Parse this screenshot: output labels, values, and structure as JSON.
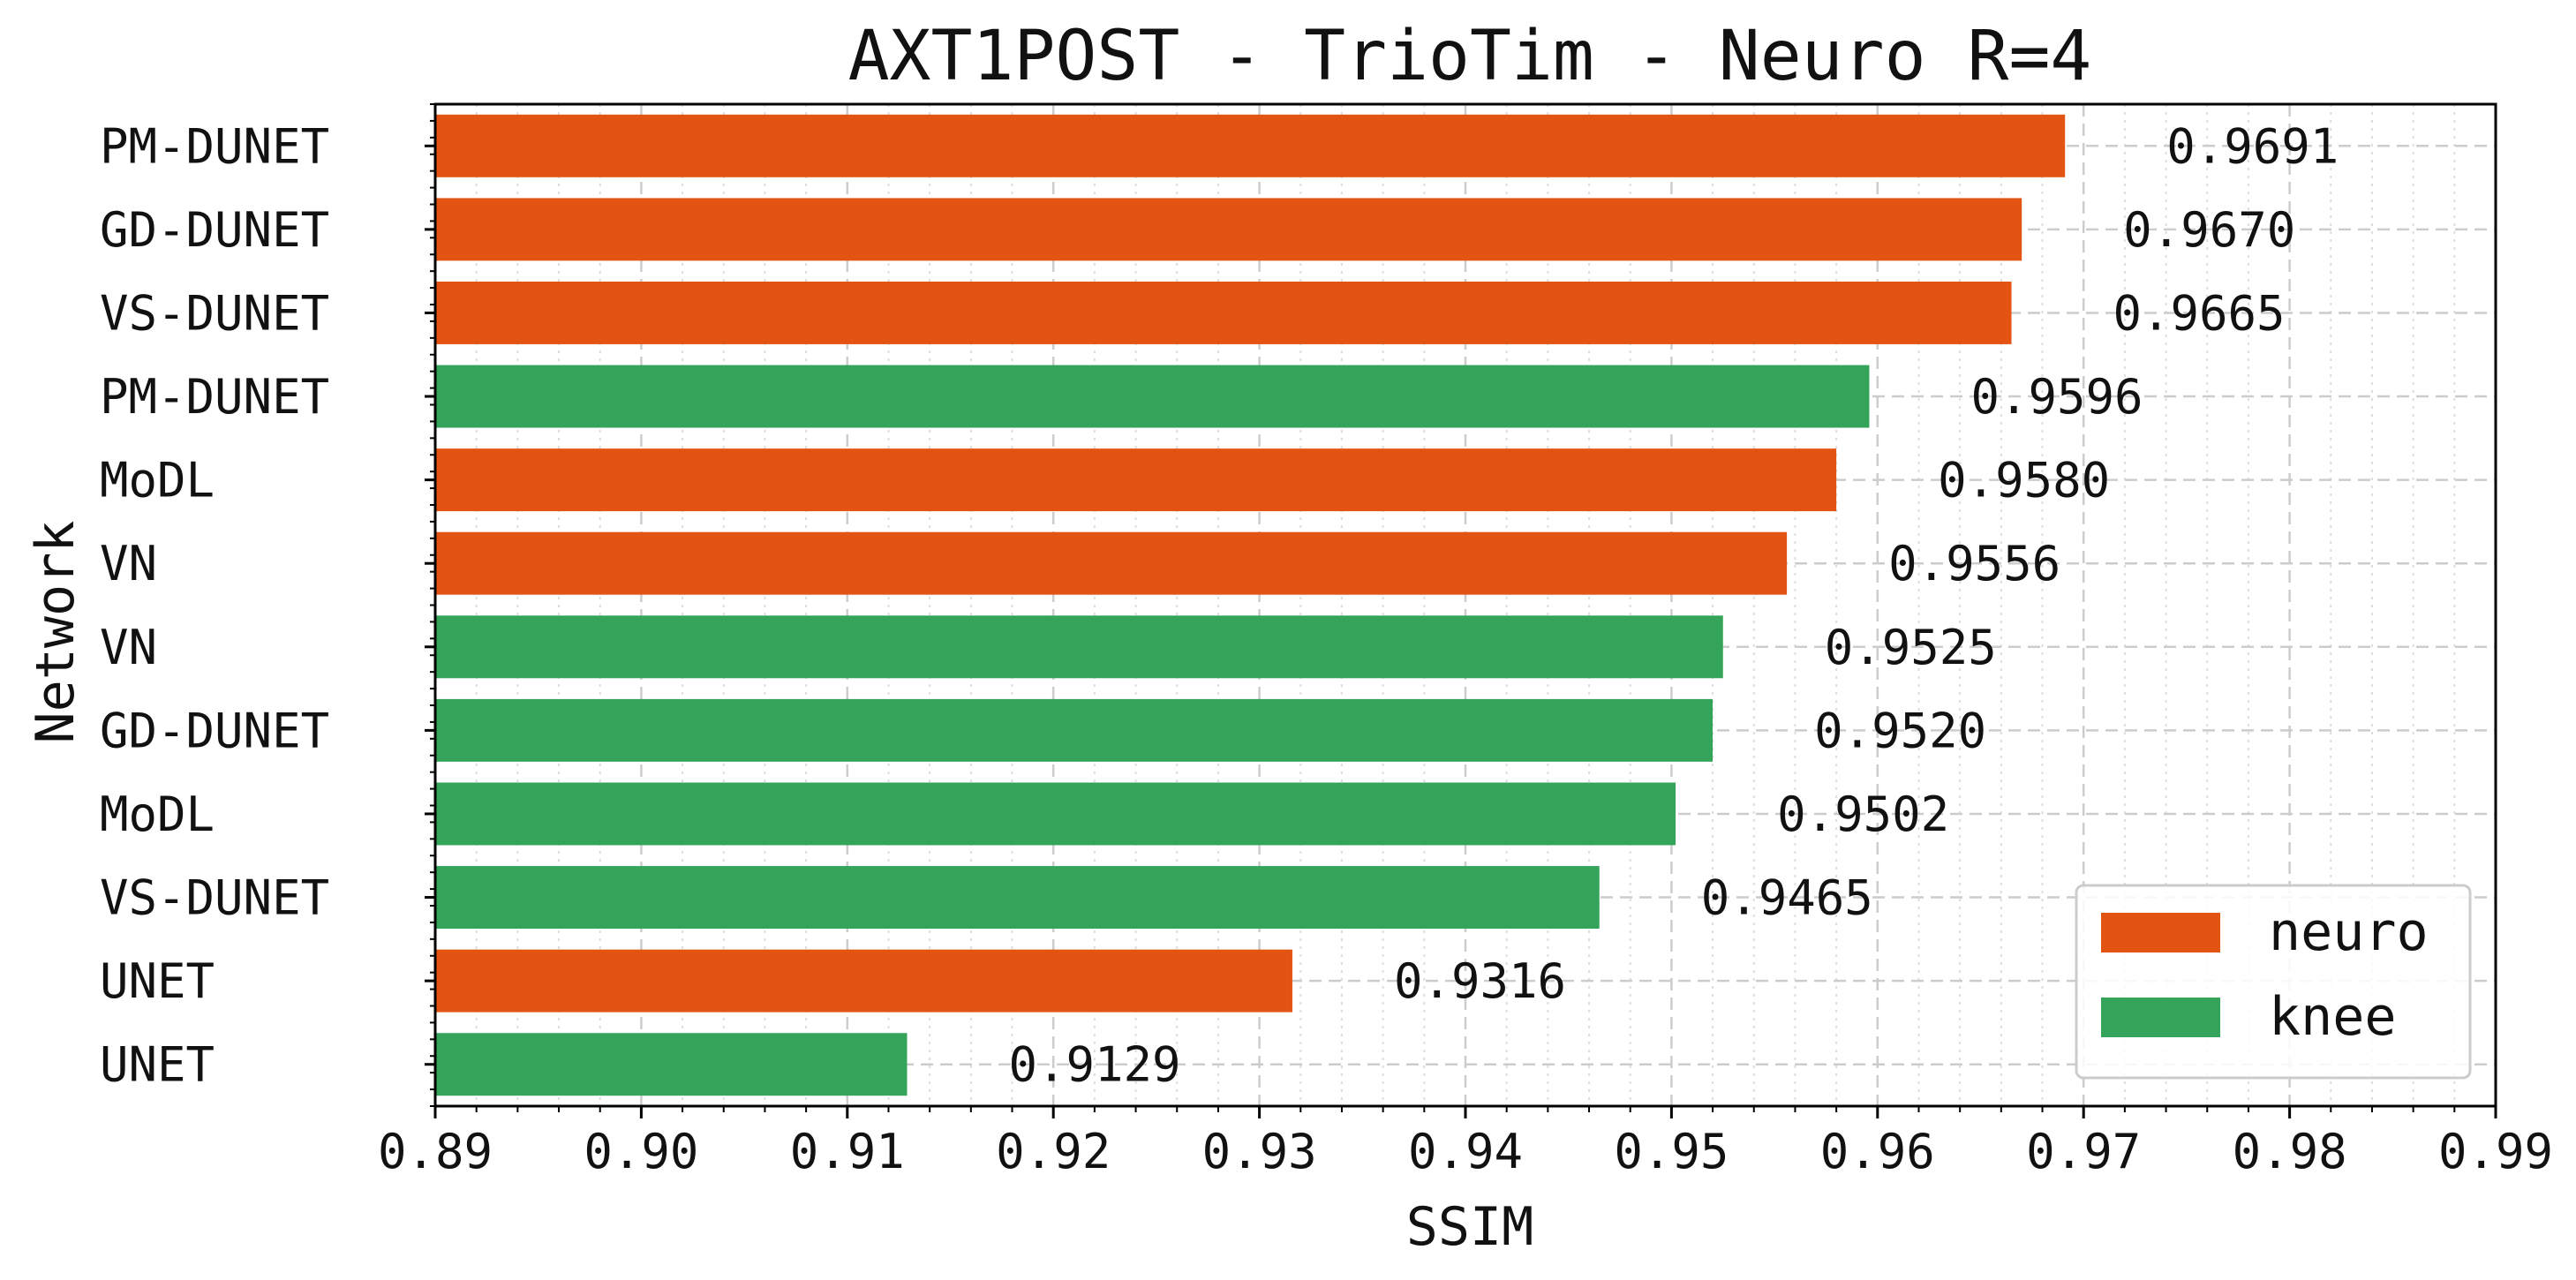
{
  "chart_data": {
    "type": "bar",
    "orientation": "horizontal",
    "title": "AXT1POST - TrioTim - Neuro R=4",
    "xlabel": "SSIM",
    "ylabel": "Network",
    "xlim": [
      0.89,
      0.99
    ],
    "xticks": [
      "0.89",
      "0.90",
      "0.91",
      "0.92",
      "0.93",
      "0.94",
      "0.95",
      "0.96",
      "0.97",
      "0.98",
      "0.99"
    ],
    "grid": true,
    "legend_position": "lower-right",
    "series_colors": {
      "neuro": "#e35412",
      "knee": "#33a459"
    },
    "legend": [
      {
        "name": "neuro",
        "color": "#e35412"
      },
      {
        "name": "knee",
        "color": "#33a459"
      }
    ],
    "bars": [
      {
        "label": "PM-DUNET",
        "value": 0.9691,
        "value_label": "0.9691",
        "series": "neuro"
      },
      {
        "label": "GD-DUNET",
        "value": 0.967,
        "value_label": "0.9670",
        "series": "neuro"
      },
      {
        "label": "VS-DUNET",
        "value": 0.9665,
        "value_label": "0.9665",
        "series": "neuro"
      },
      {
        "label": "PM-DUNET",
        "value": 0.9596,
        "value_label": "0.9596",
        "series": "knee"
      },
      {
        "label": "MoDL",
        "value": 0.958,
        "value_label": "0.9580",
        "series": "neuro"
      },
      {
        "label": "VN",
        "value": 0.9556,
        "value_label": "0.9556",
        "series": "neuro"
      },
      {
        "label": "VN",
        "value": 0.9525,
        "value_label": "0.9525",
        "series": "knee"
      },
      {
        "label": "GD-DUNET",
        "value": 0.952,
        "value_label": "0.9520",
        "series": "knee"
      },
      {
        "label": "MoDL",
        "value": 0.9502,
        "value_label": "0.9502",
        "series": "knee"
      },
      {
        "label": "VS-DUNET",
        "value": 0.9465,
        "value_label": "0.9465",
        "series": "knee"
      },
      {
        "label": "UNET",
        "value": 0.9316,
        "value_label": "0.9316",
        "series": "neuro"
      },
      {
        "label": "UNET",
        "value": 0.9129,
        "value_label": "0.9129",
        "series": "knee"
      }
    ]
  }
}
